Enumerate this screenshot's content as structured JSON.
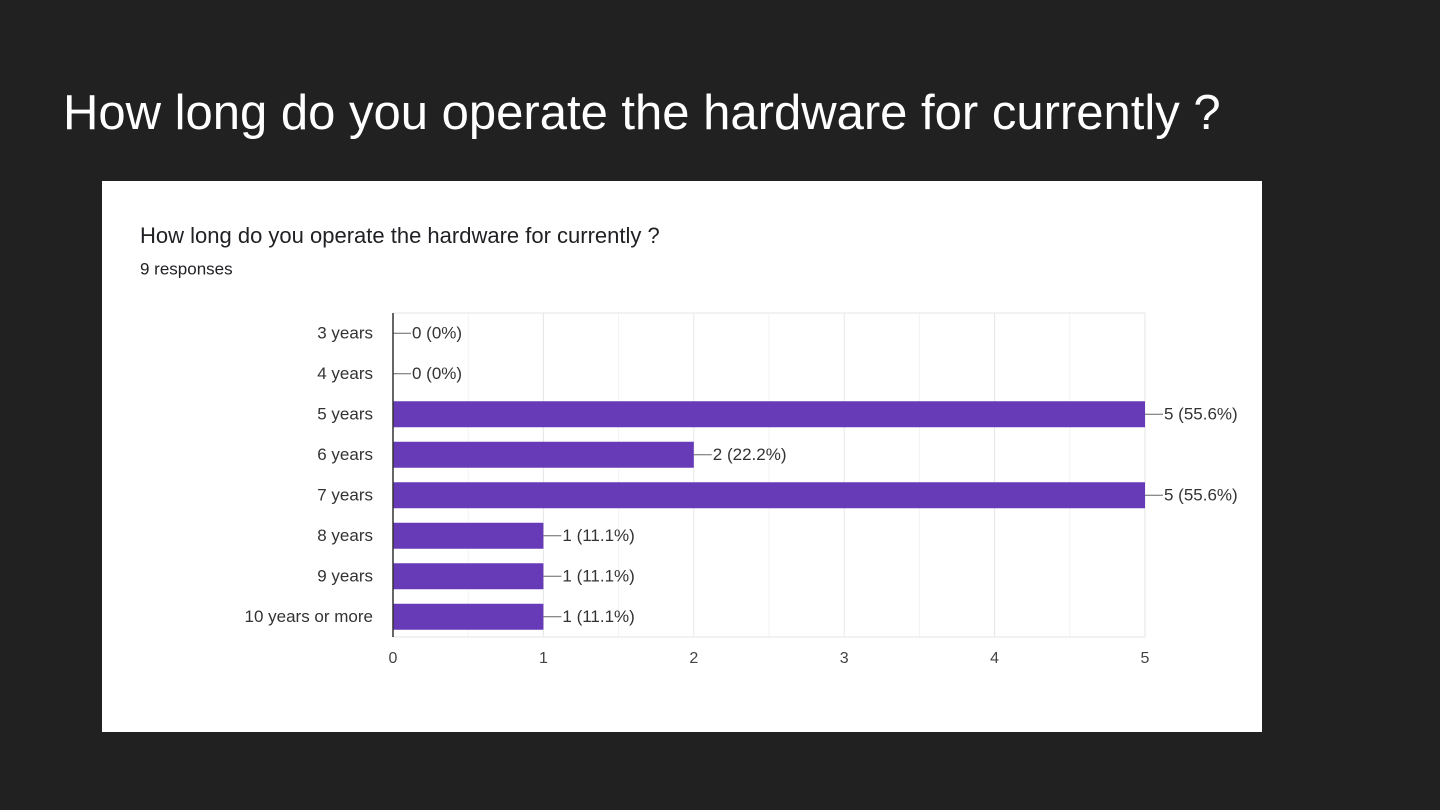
{
  "slide": {
    "title": "How long do you operate the hardware for currently ?"
  },
  "chart_data": {
    "type": "hbar",
    "title": "How long do you operate the hardware for currently ?",
    "subtitle": "9 responses",
    "categories": [
      "3 years",
      "4 years",
      "5 years",
      "6 years",
      "7 years",
      "8 years",
      "9 years",
      "10 years or more"
    ],
    "values": [
      0,
      0,
      5,
      2,
      5,
      1,
      1,
      1
    ],
    "value_labels": [
      "0 (0%)",
      "0 (0%)",
      "5 (55.6%)",
      "2 (22.2%)",
      "5 (55.6%)",
      "1 (11.1%)",
      "1 (11.1%)",
      "1 (11.1%)"
    ],
    "color": "#673ab7",
    "xlim": [
      0,
      5
    ],
    "xticks": [
      0,
      1,
      2,
      3,
      4,
      5
    ],
    "minor_gridlines": [
      0.5,
      1.5,
      2.5,
      3.5,
      4.5
    ],
    "grid": true
  }
}
